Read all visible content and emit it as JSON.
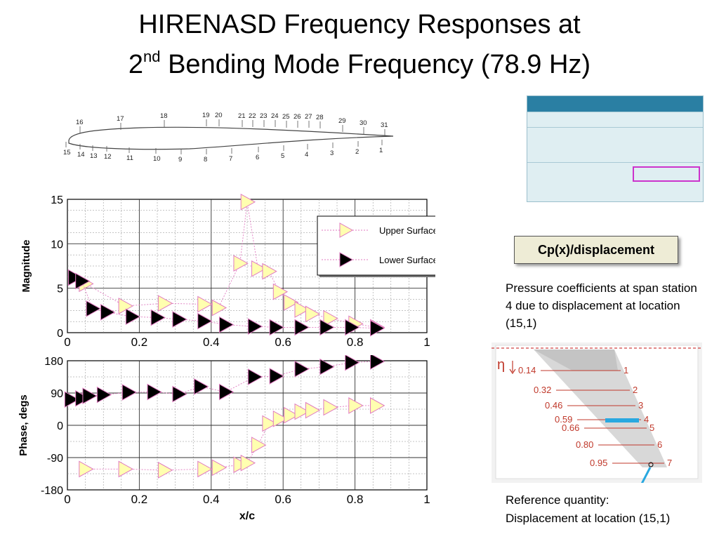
{
  "slide": {
    "title_line1": "HIRENASD Frequency Responses at",
    "title_line2_prefix": "2",
    "title_line2_sup": "nd",
    "title_line2_rest": " Bending Mode Frequency (78.9 Hz)"
  },
  "airfoil": {
    "upper_labels": [
      "16",
      "17",
      "18",
      "19",
      "20",
      "21",
      "22",
      "23",
      "24",
      "25",
      "26",
      "27",
      "28",
      "29",
      "30",
      "31"
    ],
    "lower_labels": [
      "15",
      "14",
      "13",
      "12",
      "11",
      "10",
      "9",
      "8",
      "7",
      "6",
      "5",
      "4",
      "3",
      "2",
      "1"
    ]
  },
  "callout": {
    "text": "Cp(x)/displacement"
  },
  "notes": {
    "description": "Pressure coefficients at span station 4 due to displacement at location (15,1)",
    "reference_line1": "Reference quantity:",
    "reference_line2": "Displacement at location (15,1)"
  },
  "wing_diagram": {
    "eta_symbol": "η",
    "stations": [
      {
        "eta": "0.14",
        "index": "1"
      },
      {
        "eta": "0.32",
        "index": "2"
      },
      {
        "eta": "0.46",
        "index": "3"
      },
      {
        "eta": "0.59",
        "index": "4"
      },
      {
        "eta": "0.66",
        "index": "5"
      },
      {
        "eta": "0.80",
        "index": "6"
      },
      {
        "eta": "0.95",
        "index": "7"
      }
    ]
  },
  "colors": {
    "upper_fill": "#ffffb0",
    "upper_stroke": "#e07ac0",
    "lower_fill": "#000000",
    "lower_stroke": "#e07ac0",
    "station_label": "#c0392b",
    "highlight_bar": "#29a8e0"
  },
  "chart_data": [
    {
      "type": "scatter",
      "title": "",
      "xlabel": "",
      "ylabel": "Magnitude",
      "xlim": [
        0,
        1
      ],
      "ylim": [
        0,
        15
      ],
      "xticks": [
        "0",
        "0.2",
        "0.4",
        "0.6",
        "0.8",
        "1"
      ],
      "yticks": [
        "0",
        "5",
        "10",
        "15"
      ],
      "grid": true,
      "legend": "top-right",
      "series": [
        {
          "name": "Upper Surface",
          "x": [
            0.05,
            0.16,
            0.27,
            0.38,
            0.42,
            0.48,
            0.5,
            0.53,
            0.56,
            0.59,
            0.62,
            0.65,
            0.68,
            0.73,
            0.8,
            0.86
          ],
          "y": [
            5.5,
            3.0,
            3.3,
            3.2,
            2.8,
            7.8,
            14.7,
            7.2,
            6.9,
            4.6,
            3.4,
            2.6,
            2.1,
            1.6,
            1.0,
            0.6
          ]
        },
        {
          "name": "Lower Surface",
          "x": [
            0.02,
            0.04,
            0.07,
            0.11,
            0.18,
            0.25,
            0.31,
            0.38,
            0.44,
            0.52,
            0.58,
            0.65,
            0.72,
            0.79,
            0.86
          ],
          "y": [
            6.2,
            5.8,
            2.7,
            2.3,
            1.8,
            1.7,
            1.5,
            1.3,
            0.9,
            0.7,
            0.6,
            0.6,
            0.6,
            0.6,
            0.5
          ]
        }
      ]
    },
    {
      "type": "scatter",
      "title": "",
      "xlabel": "x/c",
      "ylabel": "Phase, degs",
      "xlim": [
        0,
        1
      ],
      "ylim": [
        -180,
        180
      ],
      "xticks": [
        "0",
        "0.2",
        "0.4",
        "0.6",
        "0.8",
        "1"
      ],
      "yticks": [
        "-180",
        "-90",
        "0",
        "90",
        "180"
      ],
      "grid": true,
      "series": [
        {
          "name": "Upper Surface",
          "x": [
            0.05,
            0.16,
            0.27,
            0.38,
            0.42,
            0.48,
            0.5,
            0.53,
            0.56,
            0.59,
            0.62,
            0.65,
            0.68,
            0.73,
            0.8,
            0.86
          ],
          "y": [
            -122,
            -122,
            -125,
            -122,
            -118,
            -110,
            -105,
            -55,
            5,
            18,
            28,
            38,
            42,
            50,
            55,
            55
          ]
        },
        {
          "name": "Lower Surface",
          "x": [
            0.01,
            0.04,
            0.06,
            0.1,
            0.17,
            0.24,
            0.31,
            0.37,
            0.44,
            0.52,
            0.58,
            0.65,
            0.72,
            0.79,
            0.86
          ],
          "y": [
            72,
            75,
            82,
            85,
            92,
            93,
            87,
            108,
            93,
            135,
            137,
            157,
            163,
            175,
            178
          ]
        }
      ]
    }
  ]
}
